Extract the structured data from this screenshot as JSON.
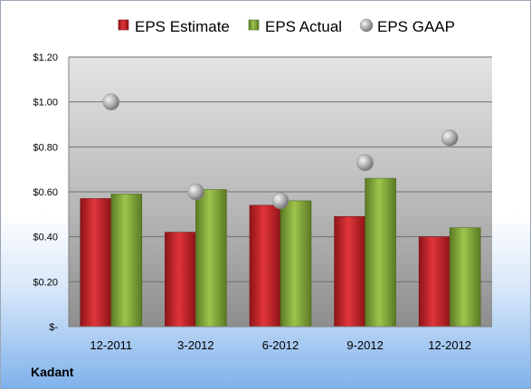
{
  "chart_data": {
    "type": "bar",
    "categories": [
      "12-2011",
      "3-2012",
      "6-2012",
      "9-2012",
      "12-2012"
    ],
    "series": [
      {
        "name": "EPS Estimate",
        "kind": "bar",
        "color": "#c0282b",
        "values": [
          0.57,
          0.42,
          0.54,
          0.49,
          0.4
        ]
      },
      {
        "name": "EPS Actual",
        "kind": "bar",
        "color": "#7fa23c",
        "values": [
          0.59,
          0.61,
          0.56,
          0.66,
          0.44
        ]
      },
      {
        "name": "EPS GAAP",
        "kind": "marker",
        "color": "#a8a8a8",
        "values": [
          1.0,
          0.6,
          0.56,
          0.73,
          0.84
        ]
      }
    ],
    "y_ticks": [
      "$-",
      "$0.20",
      "$0.40",
      "$0.60",
      "$0.80",
      "$1.00",
      "$1.20"
    ],
    "ylim": [
      0,
      1.2
    ],
    "grid": true,
    "legend_position": "top"
  },
  "footer": {
    "company": "Kadant"
  }
}
